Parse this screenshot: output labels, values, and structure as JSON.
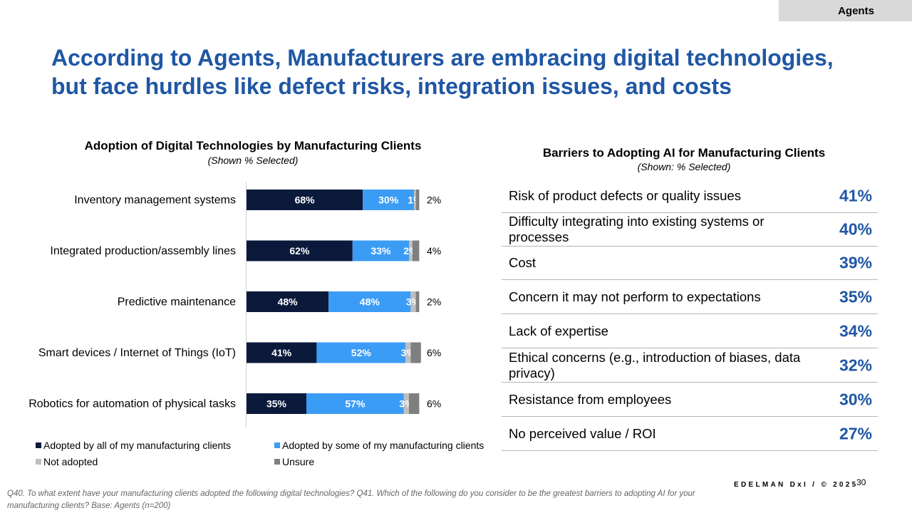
{
  "header": {
    "tag": "Agents"
  },
  "title": {
    "line1": "According to Agents, Manufacturers are embracing digital technologies,",
    "line2": "but face hurdles like defect risks, integration issues, and costs"
  },
  "left_panel": {
    "title": "Adoption of Digital Technologies by Manufacturing Clients",
    "subtitle": "(Shown % Selected)"
  },
  "right_panel": {
    "title": "Barriers to Adopting AI for Manufacturing Clients",
    "subtitle": "(Shown: % Selected)",
    "rows": [
      {
        "label": "Risk of product defects or quality issues",
        "value": "41%"
      },
      {
        "label": "Difficulty integrating into existing systems or processes",
        "value": "40%"
      },
      {
        "label": "Cost",
        "value": "39%"
      },
      {
        "label": "Concern it may not perform to expectations",
        "value": "35%"
      },
      {
        "label": "Lack of expertise",
        "value": "34%"
      },
      {
        "label": "Ethical concerns (e.g., introduction of biases, data privacy)",
        "value": "32%"
      },
      {
        "label": "Resistance from employees",
        "value": "30%"
      },
      {
        "label": "No perceived value / ROI",
        "value": "27%"
      }
    ]
  },
  "chart_data": [
    {
      "type": "bar",
      "orientation": "horizontal",
      "stacked": true,
      "title": "Adoption of Digital Technologies by Manufacturing Clients",
      "subtitle": "(Shown % Selected)",
      "categories": [
        "Inventory management systems",
        "Integrated production/assembly lines",
        "Predictive maintenance",
        "Smart devices / Internet of Things (IoT)",
        "Robotics for automation of physical tasks"
      ],
      "series": [
        {
          "name": "Adopted by all of my manufacturing clients",
          "color": "#0b1a3b",
          "values": [
            68,
            62,
            48,
            41,
            35
          ]
        },
        {
          "name": "Adopted by some of my manufacturing clients",
          "color": "#3b9cf5",
          "values": [
            30,
            33,
            48,
            52,
            57
          ]
        },
        {
          "name": "Not adopted",
          "color": "#bfbfbf",
          "values": [
            1,
            2,
            3,
            3,
            3
          ]
        },
        {
          "name": "Unsure",
          "color": "#7f7f7f",
          "values": [
            2,
            4,
            2,
            6,
            6
          ]
        }
      ],
      "legend_position": "bottom",
      "grid": false
    },
    {
      "type": "table",
      "title": "Barriers to Adopting AI for Manufacturing Clients",
      "subtitle": "(Shown: % Selected)",
      "categories": [
        "Risk of product defects or quality issues",
        "Difficulty integrating into existing systems or processes",
        "Cost",
        "Concern it may not perform to expectations",
        "Lack of expertise",
        "Ethical concerns (e.g., introduction of biases, data privacy)",
        "Resistance from employees",
        "No perceived value / ROI"
      ],
      "values": [
        41,
        40,
        39,
        35,
        34,
        32,
        30,
        27
      ]
    }
  ],
  "footer": {
    "brand": "EDELMAN DxI / © 2025",
    "page": "30",
    "note": "Q40. To what extent have your manufacturing clients adopted the following digital technologies? Q41. Which of the following do you consider to be the greatest barriers to adopting AI for your manufacturing clients? Base: Agents (n=200)"
  }
}
